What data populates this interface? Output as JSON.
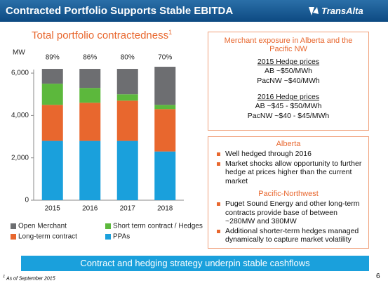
{
  "header": {
    "title": "Contracted Portfolio Supports Stable EBITDA",
    "logo": "TransAlta"
  },
  "chart_data": {
    "type": "stacked-bar",
    "title": "Total portfolio contractedness",
    "title_marker": "1",
    "y_label": "MW",
    "categories": [
      "2015",
      "2016",
      "2017",
      "2018"
    ],
    "bar_labels": [
      "89%",
      "86%",
      "80%",
      "70%"
    ],
    "series": [
      {
        "name": "PPAs",
        "color": "#1aa0dc",
        "values": [
          2800,
          2800,
          2800,
          2300
        ]
      },
      {
        "name": "Long-term contract",
        "color": "#e8672e",
        "values": [
          1700,
          1800,
          1900,
          2000
        ]
      },
      {
        "name": "Short term contract / Hedges",
        "color": "#5cb83c",
        "values": [
          1000,
          700,
          300,
          200
        ]
      },
      {
        "name": "Open Merchant",
        "color": "#6d6e71",
        "values": [
          700,
          900,
          1200,
          1800
        ]
      }
    ],
    "ylim": [
      0,
      6500
    ],
    "yticks": [
      0,
      {
        "value": 2000,
        "label": "2,000"
      },
      {
        "value": 4000,
        "label": "4,000"
      },
      {
        "value": 6000,
        "label": "6,000"
      }
    ]
  },
  "merchant_box": {
    "title": "Merchant exposure in Alberta and the Pacific NW",
    "groups": [
      {
        "heading": "2015 Hedge prices",
        "lines": [
          "AB ~$50/MWh",
          "PacNW ~$40/MWh"
        ]
      },
      {
        "heading": "2016 Hedge prices",
        "lines": [
          "AB ~$45 - $50/MWh",
          "PacNW ~$40 - $45/MWh"
        ]
      }
    ]
  },
  "regions_box": {
    "sections": [
      {
        "heading": "Alberta",
        "bullets": [
          "Well hedged through 2016",
          "Market shocks allow opportunity to further hedge at prices higher than the current market"
        ]
      },
      {
        "heading": "Pacific-Northwest",
        "bullets": [
          "Puget Sound Energy and other long-term contracts provide base of between ~280MW and 380MW",
          "Additional shorter-term hedges managed dynamically to capture market volatility"
        ]
      }
    ]
  },
  "banner": "Contract and hedging strategy underpin stable cashflows",
  "footnote": {
    "marker": "1",
    "text": "As of September 2015"
  },
  "page_number": "6"
}
